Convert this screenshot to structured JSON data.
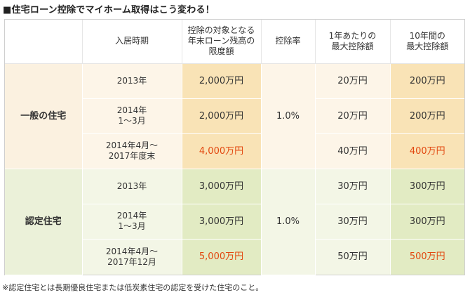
{
  "title": "■住宅ローン控除でマイホーム取得はこう変わる！",
  "headers": {
    "c1": "",
    "c2": "入居時期",
    "c3": [
      "控除の対象となる",
      "年末ローン残高の",
      "限度額"
    ],
    "c4": "控除率",
    "c5": [
      "1年あたりの",
      "最大控除額"
    ],
    "c6": [
      "10年間の",
      "最大控除額"
    ]
  },
  "general": {
    "category": "一般の住宅",
    "rate": "1.0%",
    "rows": [
      {
        "period": [
          "2013年"
        ],
        "limit": "2,000万円",
        "annual": "20万円",
        "total": "200万円"
      },
      {
        "period": [
          "2014年",
          "1〜3月"
        ],
        "limit": "2,000万円",
        "annual": "20万円",
        "total": "200万円"
      },
      {
        "period": [
          "2014年4月〜",
          "2017年度末"
        ],
        "limit": "4,000万円",
        "annual": "40万円",
        "total": "400万円"
      }
    ]
  },
  "certified": {
    "category": "認定住宅",
    "rate": "1.0%",
    "rows": [
      {
        "period": [
          "2013年"
        ],
        "limit": "3,000万円",
        "annual": "30万円",
        "total": "300万円"
      },
      {
        "period": [
          "2014年",
          "1〜3月"
        ],
        "limit": "3,000万円",
        "annual": "30万円",
        "total": "300万円"
      },
      {
        "period": [
          "2014年4月〜",
          "2017年12月"
        ],
        "limit": "5,000万円",
        "annual": "50万円",
        "total": "500万円"
      }
    ]
  },
  "note": "※認定住宅とは長期優良住宅または低炭素住宅の認定を受けた住宅のこと。",
  "colors": {
    "highlight_red": "#e2470f",
    "general_dark": "#f9e3b6",
    "certified_dark": "#e2ebc3"
  }
}
